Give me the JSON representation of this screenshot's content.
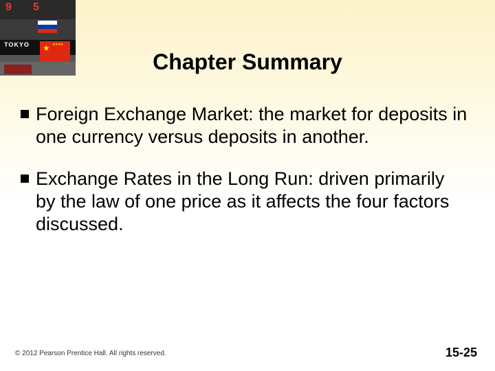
{
  "title": "Chapter Summary",
  "bullets": [
    "Foreign Exchange Market: the market for deposits in one currency versus deposits in another.",
    "Exchange Rates in the Long Run: driven primarily by the law of one price as it affects the four factors discussed."
  ],
  "corner": {
    "digits": [
      "9",
      "5"
    ],
    "midtext": "TOKYO"
  },
  "footer": {
    "copyright": "© 2012 Pearson Prentice Hall. All rights reserved.",
    "page": "15-25"
  },
  "colors": {
    "bg_top": "#fdf2c8",
    "bg_bottom": "#ffffff",
    "text": "#000000"
  }
}
